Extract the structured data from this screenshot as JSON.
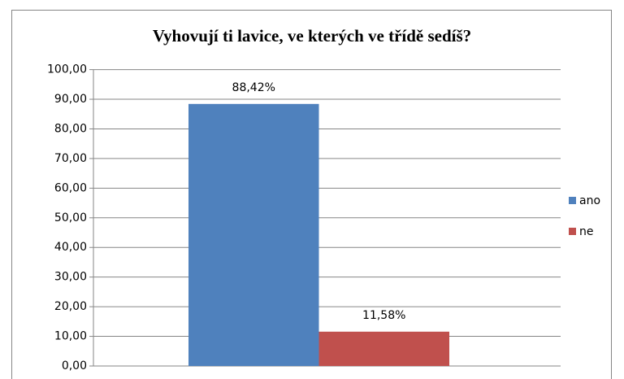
{
  "chart_data": {
    "type": "bar",
    "title": "Vyhovují ti lavice, ve kterých ve třídě sedíš?",
    "categories": [
      null
    ],
    "series": [
      {
        "name": "ano",
        "color": "#4f81bd",
        "values": [
          88.42
        ],
        "value_labels": [
          "88,42%"
        ]
      },
      {
        "name": "ne",
        "color": "#c0504d",
        "values": [
          11.58
        ],
        "value_labels": [
          "11,58%"
        ]
      }
    ],
    "ylim": [
      0,
      100
    ],
    "yticks": [
      {
        "value": 0,
        "label": "0,00"
      },
      {
        "value": 10,
        "label": "10,00"
      },
      {
        "value": 20,
        "label": "20,00"
      },
      {
        "value": 30,
        "label": "30,00"
      },
      {
        "value": 40,
        "label": "40,00"
      },
      {
        "value": 50,
        "label": "50,00"
      },
      {
        "value": 60,
        "label": "60,00"
      },
      {
        "value": 70,
        "label": "70,00"
      },
      {
        "value": 80,
        "label": "80,00"
      },
      {
        "value": 90,
        "label": "90,00"
      },
      {
        "value": 100,
        "label": "100,00"
      }
    ],
    "grid": true,
    "legend": "right"
  }
}
